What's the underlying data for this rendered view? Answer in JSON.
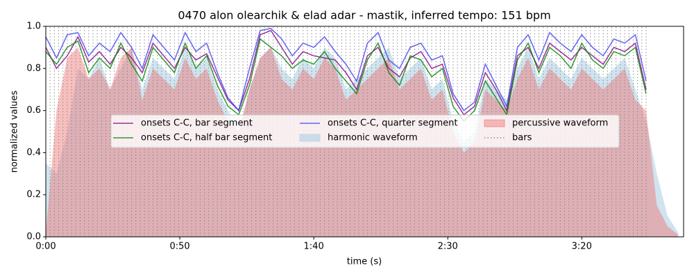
{
  "chart_data": {
    "type": "waveform",
    "title": "0470 alon olearchik & elad adar - mastik, inferred tempo: 151 bpm",
    "xlabel": "time (s)",
    "ylabel": "normalized values",
    "xlim": [
      0,
      238
    ],
    "ylim": [
      0,
      1
    ],
    "xticks": [
      {
        "value": 0,
        "label": "0:00"
      },
      {
        "value": 50,
        "label": "0:50"
      },
      {
        "value": 100,
        "label": "1:40"
      },
      {
        "value": 150,
        "label": "2:30"
      },
      {
        "value": 200,
        "label": "3:20"
      }
    ],
    "yticks": [
      {
        "value": 0,
        "label": "0.0"
      },
      0.2,
      0.4,
      0.6,
      0.8,
      {
        "value": 1,
        "label": "1.0"
      }
    ],
    "legend": "center",
    "series": [
      {
        "name": "onsets C-C, bar segment",
        "kind": "line",
        "color": "#800080",
        "x": [
          0,
          4,
          8,
          12,
          16,
          20,
          24,
          28,
          32,
          36,
          40,
          44,
          48,
          52,
          56,
          60,
          64,
          68,
          72,
          76,
          80,
          84,
          88,
          92,
          96,
          100,
          104,
          108,
          112,
          116,
          120,
          124,
          128,
          132,
          136,
          140,
          144,
          148,
          152,
          156,
          160,
          164,
          168,
          172,
          176,
          180,
          184,
          188,
          192,
          196,
          200,
          204,
          208,
          212,
          216,
          220,
          224
        ],
        "values": [
          0.9,
          0.8,
          0.86,
          0.95,
          0.83,
          0.88,
          0.82,
          0.9,
          0.85,
          0.78,
          0.92,
          0.86,
          0.8,
          0.9,
          0.84,
          0.87,
          0.76,
          0.65,
          0.6,
          0.75,
          0.96,
          0.98,
          0.9,
          0.82,
          0.88,
          0.86,
          0.85,
          0.84,
          0.78,
          0.7,
          0.86,
          0.9,
          0.8,
          0.76,
          0.85,
          0.88,
          0.8,
          0.82,
          0.66,
          0.58,
          0.62,
          0.78,
          0.7,
          0.6,
          0.86,
          0.9,
          0.8,
          0.92,
          0.88,
          0.84,
          0.9,
          0.86,
          0.82,
          0.9,
          0.88,
          0.92,
          0.7
        ]
      },
      {
        "name": "onsets C-C, half bar segment",
        "kind": "line",
        "color": "#008000",
        "x": [
          0,
          4,
          8,
          12,
          16,
          20,
          24,
          28,
          32,
          36,
          40,
          44,
          48,
          52,
          56,
          60,
          64,
          68,
          72,
          76,
          80,
          84,
          88,
          92,
          96,
          100,
          104,
          108,
          112,
          116,
          120,
          124,
          128,
          132,
          136,
          140,
          144,
          148,
          152,
          156,
          160,
          164,
          168,
          172,
          176,
          180,
          184,
          188,
          192,
          196,
          200,
          204,
          208,
          212,
          216,
          220,
          224
        ],
        "values": [
          0.88,
          0.82,
          0.9,
          0.93,
          0.78,
          0.85,
          0.8,
          0.92,
          0.82,
          0.74,
          0.9,
          0.84,
          0.78,
          0.92,
          0.8,
          0.86,
          0.72,
          0.62,
          0.58,
          0.72,
          0.94,
          0.9,
          0.86,
          0.8,
          0.84,
          0.82,
          0.88,
          0.8,
          0.74,
          0.68,
          0.84,
          0.92,
          0.78,
          0.72,
          0.86,
          0.84,
          0.76,
          0.8,
          0.62,
          0.55,
          0.6,
          0.74,
          0.66,
          0.58,
          0.84,
          0.92,
          0.78,
          0.9,
          0.86,
          0.8,
          0.92,
          0.84,
          0.8,
          0.88,
          0.86,
          0.9,
          0.68
        ]
      },
      {
        "name": "onsets C-C, quarter segment",
        "kind": "line",
        "color": "#4040f0",
        "x": [
          0,
          4,
          8,
          12,
          16,
          20,
          24,
          28,
          32,
          36,
          40,
          44,
          48,
          52,
          56,
          60,
          64,
          68,
          72,
          76,
          80,
          84,
          88,
          92,
          96,
          100,
          104,
          108,
          112,
          116,
          120,
          124,
          128,
          132,
          136,
          140,
          144,
          148,
          152,
          156,
          160,
          164,
          168,
          172,
          176,
          180,
          184,
          188,
          192,
          196,
          200,
          204,
          208,
          212,
          216,
          220,
          224
        ],
        "values": [
          0.95,
          0.85,
          0.96,
          0.97,
          0.86,
          0.92,
          0.88,
          0.97,
          0.9,
          0.8,
          0.96,
          0.9,
          0.84,
          0.97,
          0.88,
          0.92,
          0.78,
          0.66,
          0.6,
          0.8,
          0.98,
          0.99,
          0.94,
          0.86,
          0.92,
          0.9,
          0.95,
          0.88,
          0.82,
          0.74,
          0.92,
          0.97,
          0.84,
          0.8,
          0.9,
          0.92,
          0.84,
          0.86,
          0.68,
          0.6,
          0.64,
          0.82,
          0.72,
          0.62,
          0.9,
          0.96,
          0.84,
          0.97,
          0.92,
          0.88,
          0.96,
          0.9,
          0.86,
          0.94,
          0.92,
          0.96,
          0.74
        ]
      },
      {
        "name": "harmonic waveform",
        "kind": "area",
        "color": "#a8cde2",
        "x": [
          0,
          4,
          8,
          12,
          16,
          20,
          24,
          28,
          32,
          36,
          40,
          44,
          48,
          52,
          56,
          60,
          64,
          68,
          72,
          76,
          80,
          84,
          88,
          92,
          96,
          100,
          104,
          108,
          112,
          116,
          120,
          124,
          128,
          132,
          136,
          140,
          144,
          148,
          152,
          156,
          160,
          164,
          168,
          172,
          176,
          180,
          184,
          188,
          192,
          196,
          200,
          204,
          208,
          212,
          216,
          220,
          224,
          228,
          232,
          236
        ],
        "values": [
          0.35,
          0.3,
          0.5,
          0.8,
          0.75,
          0.85,
          0.7,
          0.8,
          0.9,
          0.7,
          0.85,
          0.8,
          0.75,
          0.9,
          0.8,
          0.85,
          0.7,
          0.6,
          0.5,
          0.7,
          0.85,
          0.9,
          0.8,
          0.75,
          0.85,
          0.8,
          0.9,
          0.85,
          0.7,
          0.75,
          0.8,
          0.85,
          0.9,
          0.75,
          0.8,
          0.85,
          0.7,
          0.75,
          0.55,
          0.45,
          0.5,
          0.75,
          0.7,
          0.65,
          0.8,
          0.9,
          0.75,
          0.85,
          0.8,
          0.75,
          0.85,
          0.8,
          0.75,
          0.8,
          0.85,
          0.7,
          0.55,
          0.3,
          0.1,
          0.02
        ]
      },
      {
        "name": "percussive waveform",
        "kind": "area",
        "color": "#f07070",
        "x": [
          0,
          4,
          8,
          12,
          16,
          20,
          24,
          28,
          32,
          36,
          40,
          44,
          48,
          52,
          56,
          60,
          64,
          68,
          72,
          76,
          80,
          84,
          88,
          92,
          96,
          100,
          104,
          108,
          112,
          116,
          120,
          124,
          128,
          132,
          136,
          140,
          144,
          148,
          152,
          156,
          160,
          164,
          168,
          172,
          176,
          180,
          184,
          188,
          192,
          196,
          200,
          204,
          208,
          212,
          216,
          220,
          224,
          228,
          232,
          236
        ],
        "values": [
          0.02,
          0.6,
          0.85,
          0.9,
          0.75,
          0.8,
          0.7,
          0.85,
          0.9,
          0.65,
          0.8,
          0.75,
          0.7,
          0.85,
          0.75,
          0.8,
          0.65,
          0.55,
          0.5,
          0.7,
          0.85,
          0.9,
          0.75,
          0.7,
          0.8,
          0.75,
          0.85,
          0.8,
          0.65,
          0.7,
          0.75,
          0.8,
          0.85,
          0.7,
          0.75,
          0.8,
          0.65,
          0.7,
          0.5,
          0.4,
          0.45,
          0.7,
          0.65,
          0.6,
          0.75,
          0.85,
          0.7,
          0.8,
          0.75,
          0.7,
          0.8,
          0.75,
          0.7,
          0.75,
          0.8,
          0.65,
          0.6,
          0.15,
          0.05,
          0.01
        ]
      },
      {
        "name": "bars",
        "kind": "vline",
        "color": "#808080",
        "x": [
          0,
          1.6,
          3.2,
          4.8,
          6.4,
          8,
          9.6,
          11.2,
          12.8,
          14.4,
          16,
          17.6,
          19.2,
          20.8,
          22.4,
          24,
          25.6,
          27.2,
          28.8,
          30.4,
          32,
          33.6,
          35.2,
          36.8,
          38.4,
          40,
          41.6,
          43.2,
          44.8,
          46.4,
          48,
          49.6,
          51.2,
          52.8,
          54.4,
          56,
          57.6,
          59.2,
          60.8,
          62.4,
          64,
          65.6,
          67.2,
          68.8,
          70.4,
          72,
          73.6,
          75.2,
          76.8,
          78.4,
          80,
          81.6,
          83.2,
          84.8,
          86.4,
          88,
          89.6,
          91.2,
          92.8,
          94.4,
          96,
          97.6,
          99.2,
          100.8,
          102.4,
          104,
          105.6,
          107.2,
          108.8,
          110.4,
          112,
          113.6,
          115.2,
          116.8,
          118.4,
          120,
          121.6,
          123.2,
          124.8,
          126.4,
          128,
          129.6,
          131.2,
          132.8,
          134.4,
          136,
          137.6,
          139.2,
          140.8,
          142.4,
          144,
          145.6,
          147.2,
          148.8,
          150.4,
          152,
          153.6,
          155.2,
          156.8,
          158.4,
          160,
          161.6,
          163.2,
          164.8,
          166.4,
          168,
          169.6,
          171.2,
          172.8,
          174.4,
          176,
          177.6,
          179.2,
          180.8,
          182.4,
          184,
          185.6,
          187.2,
          188.8,
          190.4,
          192,
          193.6,
          195.2,
          196.8,
          198.4,
          200,
          201.6,
          203.2,
          204.8,
          206.4,
          208,
          209.6,
          211.2,
          212.8,
          214.4,
          216,
          217.6,
          219.2,
          220.8,
          222.4,
          224
        ]
      }
    ]
  }
}
